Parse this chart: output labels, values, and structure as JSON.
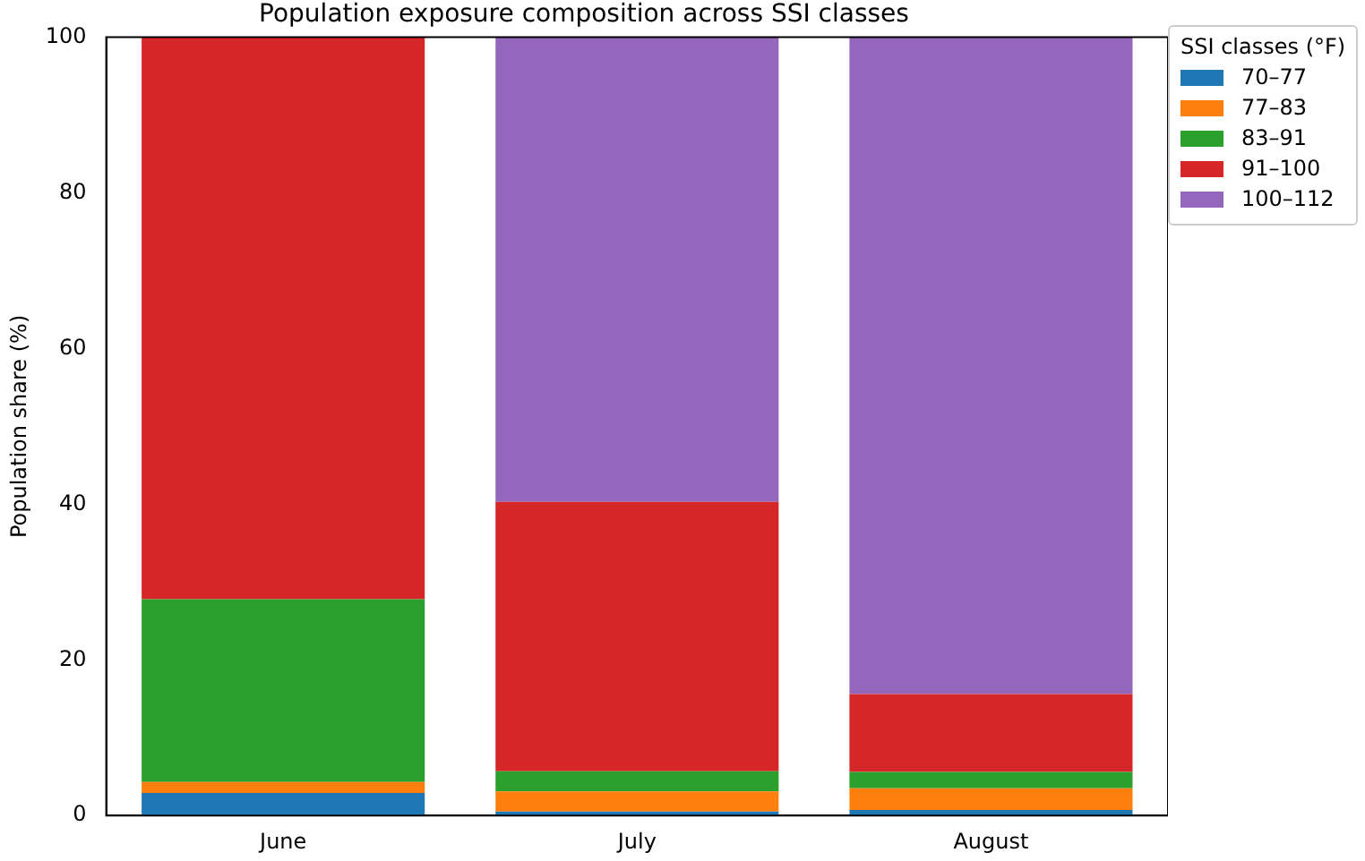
{
  "chart_data": {
    "type": "bar",
    "title": "Population exposure composition across SSI classes",
    "ylabel": "Population share (%)",
    "legend_title": "SSI classes (°F)",
    "categories": [
      "June",
      "July",
      "August"
    ],
    "stacked": true,
    "ylim": [
      0,
      100
    ],
    "yticks": [
      0,
      20,
      40,
      60,
      80,
      100
    ],
    "grid": false,
    "legend": "top right",
    "series": [
      {
        "name": "70–77",
        "color": "#1f77b4",
        "values": [
          2.9,
          0.5,
          0.7
        ]
      },
      {
        "name": "77–83",
        "color": "#ff7f0e",
        "values": [
          1.4,
          2.6,
          2.8
        ]
      },
      {
        "name": "83–91",
        "color": "#2ca02c",
        "values": [
          23.5,
          2.6,
          2.1
        ]
      },
      {
        "name": "91–100",
        "color": "#d62728",
        "values": [
          72.2,
          34.6,
          10.0
        ]
      },
      {
        "name": "100–112",
        "color": "#9467bd",
        "values": [
          0,
          59.7,
          84.4
        ]
      }
    ]
  }
}
